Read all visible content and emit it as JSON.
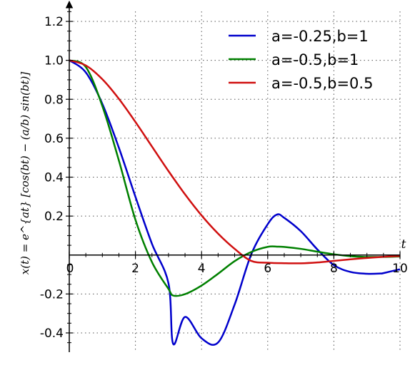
{
  "chart_data": {
    "type": "line",
    "title": "",
    "xlabel": "t",
    "ylabel": "x(t) = e^{at} [cos(bt) − (a/b) sin(bt)]",
    "xlim": [
      0,
      10
    ],
    "ylim": [
      -0.5,
      1.3
    ],
    "xticks": [
      0,
      2,
      4,
      6,
      8,
      10
    ],
    "xtick_labels": [
      "0",
      "2",
      "4",
      "6",
      "8",
      "10"
    ],
    "yticks": [
      -0.4,
      -0.2,
      0.2,
      0.4,
      0.6,
      0.8,
      1.0,
      1.2
    ],
    "ytick_labels": [
      "-0.4",
      "-0.2",
      "0.2",
      "0.4",
      "0.6",
      "0.8",
      "1.0",
      "1.2"
    ],
    "grid": true,
    "legend_position": "top-right",
    "series": [
      {
        "name": "a=-0.25,b=1",
        "color": "#0000cc",
        "x": [
          0,
          0.5,
          1,
          1.5,
          2,
          2.5,
          3,
          3.14,
          3.5,
          4,
          4.5,
          5,
          5.5,
          6,
          6.28,
          6.5,
          7,
          7.5,
          8,
          8.5,
          9,
          9.42,
          9.5,
          10
        ],
        "y": [
          1.0,
          0.9378,
          0.7764,
          0.5507,
          0.2993,
          0.0575,
          -0.1457,
          -0.456,
          -0.318,
          -0.4277,
          -0.4491,
          -0.2542,
          0.0027,
          0.1583,
          0.2079,
          0.191,
          0.1226,
          0.029,
          -0.0517,
          -0.0867,
          -0.096,
          -0.0949,
          -0.0929,
          -0.073
        ]
      },
      {
        "name": "a=-0.5,b=1",
        "color": "#008000",
        "x": [
          0,
          0.5,
          1,
          1.5,
          2,
          2.5,
          3,
          3.14,
          3.5,
          4,
          4.5,
          5,
          5.5,
          6,
          6.28,
          6.5,
          7,
          7.5,
          8,
          8.5,
          9,
          9.5,
          10
        ],
        "y": [
          1.0,
          0.9655,
          0.7651,
          0.4853,
          0.1813,
          -0.0363,
          -0.1744,
          -0.2079,
          -0.2008,
          -0.1567,
          -0.0959,
          -0.0313,
          0.0156,
          0.042,
          0.0432,
          0.0418,
          0.0318,
          0.0173,
          0.0039,
          -0.006,
          -0.01,
          -0.0096,
          -0.0072
        ]
      },
      {
        "name": "a=-0.5,b=0.5",
        "color": "#d01010",
        "x": [
          0,
          0.5,
          1,
          1.5,
          2,
          2.5,
          3,
          3.5,
          4,
          4.5,
          5,
          5.5,
          6,
          6.5,
          7,
          7.5,
          8,
          8.5,
          9,
          9.5,
          10
        ],
        "y": [
          1.0,
          0.9738,
          0.9029,
          0.8023,
          0.6836,
          0.5573,
          0.4311,
          0.3117,
          0.2036,
          0.11,
          0.0319,
          -0.03,
          -0.0394,
          -0.042,
          -0.0425,
          -0.038,
          -0.03,
          -0.022,
          -0.015,
          -0.009,
          -0.005
        ]
      }
    ]
  }
}
